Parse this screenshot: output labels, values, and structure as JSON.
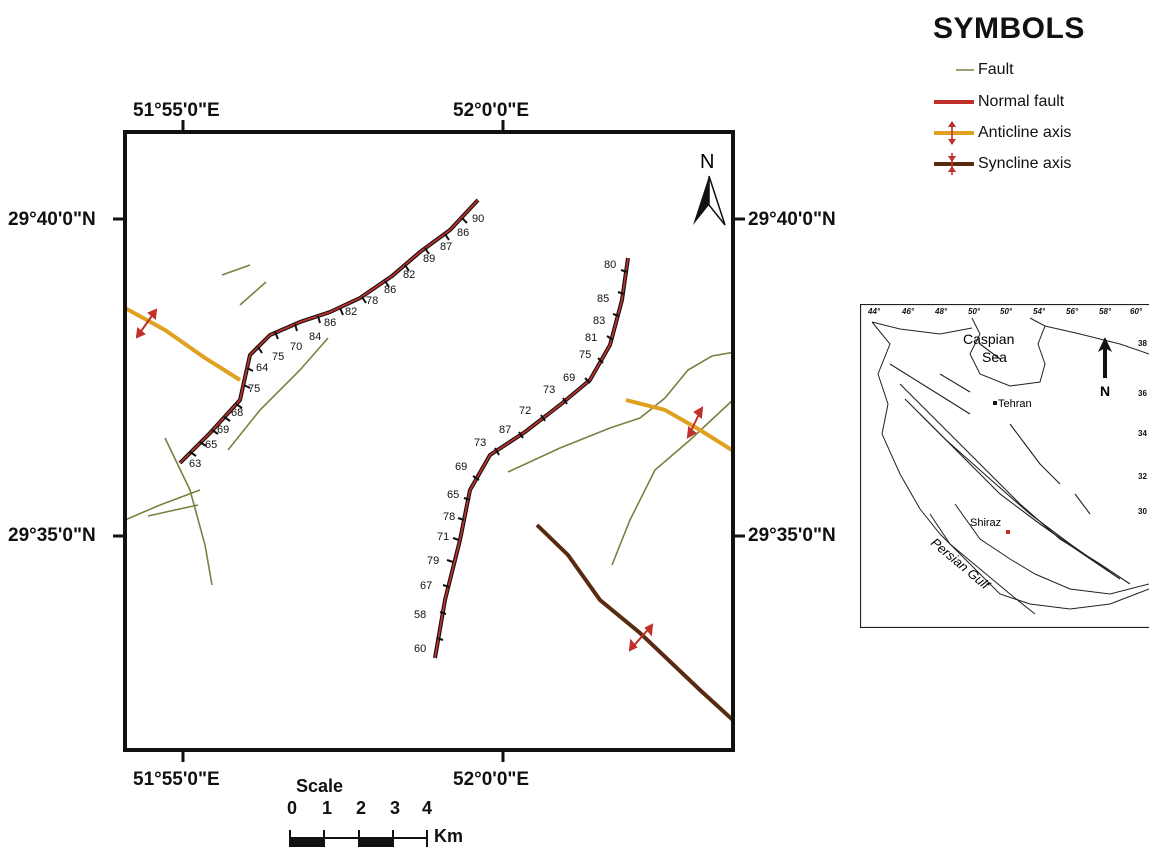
{
  "legend": {
    "title": "SYMBOLS",
    "items": [
      {
        "label": "Fault",
        "color": "#7a8040"
      },
      {
        "label": "Normal fault",
        "color": "#c0302a"
      },
      {
        "label": "Anticline axis",
        "color": "#e0a020"
      },
      {
        "label": "Syncline axis",
        "color": "#5a2a10"
      }
    ]
  },
  "coords": {
    "top_left_lon": "51°55'0\"E",
    "top_right_lon": "52°0'0\"E",
    "bottom_left_lon": "51°55'0\"E",
    "bottom_right_lon": "52°0'0\"E",
    "left_upper_lat": "29°40'0\"N",
    "left_lower_lat": "29°35'0\"N",
    "right_upper_lat": "29°40'0\"N",
    "right_lower_lat": "29°35'0\"N"
  },
  "north_label": "N",
  "scale": {
    "title": "Scale",
    "ticks": [
      "0",
      "1",
      "2",
      "3",
      "4"
    ],
    "unit": "Km"
  },
  "dips_west": [
    "90",
    "86",
    "87",
    "89",
    "82",
    "86",
    "78",
    "82",
    "86",
    "84",
    "70",
    "75",
    "64",
    "75",
    "68",
    "69",
    "65",
    "63"
  ],
  "dips_east": [
    "80",
    "85",
    "83",
    "81",
    "75",
    "69",
    "73",
    "72",
    "87",
    "73",
    "69",
    "65",
    "78",
    "71",
    "79",
    "67",
    "58",
    "60"
  ],
  "inset": {
    "lon_ticks": [
      "44°",
      "46°",
      "48°",
      "50°",
      "50°",
      "54°",
      "56°",
      "58°",
      "60°"
    ],
    "lat_ticks": [
      "38",
      "36",
      "34",
      "32",
      "30"
    ],
    "caspian": [
      "Caspian",
      "Sea"
    ],
    "tehran": "Tehran",
    "shiraz": "Shiraz",
    "gulf": "Persian Gulf",
    "north": "N"
  }
}
